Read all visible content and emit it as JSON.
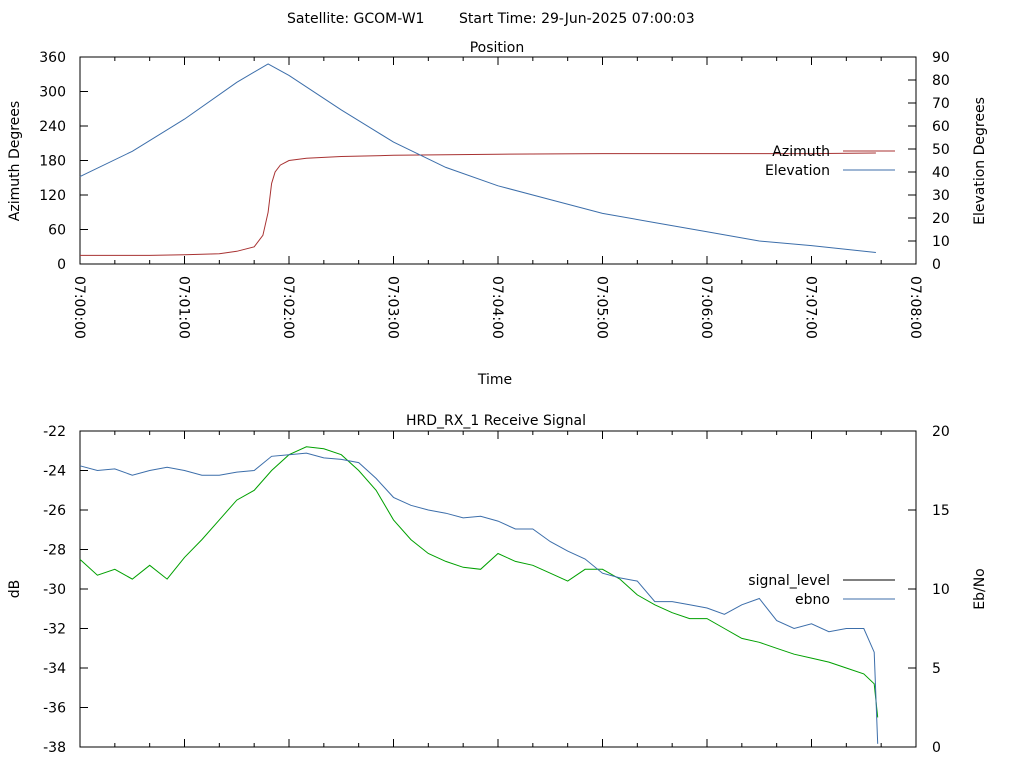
{
  "header": {
    "satellite": "Satellite: GCOM-W1",
    "start_time": "Start Time: 29-Jun-2025 07:00:03"
  },
  "chart_data": [
    {
      "type": "line",
      "title": "Position",
      "xlabel": "Time",
      "ylabel": "Azimuth Degrees",
      "y2label": "Elevation Degrees",
      "x_ticks": [
        "07:00:00",
        "07:01:00",
        "07:02:00",
        "07:03:00",
        "07:04:00",
        "07:05:00",
        "07:06:00",
        "07:07:00",
        "07:08:00"
      ],
      "x_range_seconds": [
        0,
        480
      ],
      "ylim": [
        0,
        360
      ],
      "y_ticks": [
        "0",
        "60",
        "120",
        "180",
        "240",
        "300",
        "360"
      ],
      "y2lim": [
        0,
        90
      ],
      "y2_ticks": [
        "0",
        "10",
        "20",
        "30",
        "40",
        "50",
        "60",
        "70",
        "80",
        "90"
      ],
      "legend_position": "right",
      "series": [
        {
          "name": "Azimuth",
          "axis": "y",
          "color": "#a83232",
          "x": [
            0,
            20,
            40,
            60,
            80,
            90,
            100,
            105,
            108,
            110,
            112,
            115,
            120,
            130,
            150,
            180,
            210,
            240,
            300,
            360,
            420,
            457
          ],
          "y": [
            15,
            15,
            15,
            16,
            18,
            22,
            30,
            50,
            90,
            140,
            160,
            172,
            180,
            184,
            187,
            189,
            190,
            191,
            192,
            192,
            192,
            193
          ]
        },
        {
          "name": "Elevation",
          "axis": "y2",
          "color": "#3c6eaa",
          "x": [
            0,
            30,
            60,
            90,
            108,
            120,
            150,
            180,
            210,
            240,
            270,
            300,
            330,
            360,
            390,
            420,
            457
          ],
          "y": [
            38,
            49,
            63,
            79,
            87,
            82,
            67,
            53,
            42,
            34,
            28,
            22,
            18,
            14,
            10,
            8,
            5
          ]
        }
      ]
    },
    {
      "type": "line",
      "title": "HRD_RX_1 Receive Signal",
      "xlabel": "",
      "ylabel": "dB",
      "y2label": "Eb/No",
      "x_range_seconds": [
        0,
        480
      ],
      "ylim": [
        -38,
        -22
      ],
      "y_ticks": [
        "-22",
        "-24",
        "-26",
        "-28",
        "-30",
        "-32",
        "-34",
        "-36",
        "-38"
      ],
      "y2lim": [
        0,
        20
      ],
      "y2_ticks": [
        "0",
        "5",
        "10",
        "15",
        "20"
      ],
      "legend_position": "right",
      "series": [
        {
          "name": "signal_level",
          "axis": "y",
          "color": "#00a000",
          "x": [
            0,
            10,
            20,
            30,
            40,
            50,
            60,
            70,
            80,
            90,
            100,
            110,
            120,
            130,
            140,
            150,
            160,
            170,
            180,
            190,
            200,
            210,
            220,
            230,
            240,
            250,
            260,
            270,
            280,
            290,
            300,
            310,
            320,
            330,
            340,
            350,
            360,
            370,
            380,
            390,
            400,
            410,
            420,
            430,
            440,
            450,
            456,
            458
          ],
          "y": [
            -28.5,
            -29.3,
            -29.0,
            -29.5,
            -28.8,
            -29.5,
            -28.4,
            -27.5,
            -26.5,
            -25.5,
            -25.0,
            -24.0,
            -23.2,
            -22.8,
            -22.9,
            -23.2,
            -24.0,
            -25.0,
            -26.5,
            -27.5,
            -28.2,
            -28.6,
            -28.9,
            -29.0,
            -28.2,
            -28.6,
            -28.8,
            -29.2,
            -29.6,
            -29.0,
            -29.0,
            -29.5,
            -30.3,
            -30.8,
            -31.2,
            -31.5,
            -31.5,
            -32.0,
            -32.5,
            -32.7,
            -33.0,
            -33.3,
            -33.5,
            -33.7,
            -34.0,
            -34.3,
            -34.8,
            -36.5
          ]
        },
        {
          "name": "ebno",
          "axis": "y2",
          "color": "#3c6eaa",
          "x": [
            0,
            10,
            20,
            30,
            40,
            50,
            60,
            70,
            80,
            90,
            100,
            110,
            120,
            130,
            140,
            150,
            160,
            170,
            180,
            190,
            200,
            210,
            220,
            230,
            240,
            250,
            260,
            270,
            280,
            290,
            300,
            310,
            320,
            330,
            340,
            350,
            360,
            370,
            380,
            390,
            400,
            410,
            420,
            430,
            440,
            450,
            456,
            458
          ],
          "y": [
            17.8,
            17.5,
            17.6,
            17.2,
            17.5,
            17.7,
            17.5,
            17.2,
            17.2,
            17.4,
            17.5,
            18.4,
            18.5,
            18.6,
            18.3,
            18.2,
            18.0,
            17.0,
            15.8,
            15.3,
            15.0,
            14.8,
            14.5,
            14.6,
            14.3,
            13.8,
            13.8,
            13.0,
            12.4,
            11.9,
            11.0,
            10.7,
            10.5,
            9.2,
            9.2,
            9.0,
            8.8,
            8.4,
            9.0,
            9.4,
            8.0,
            7.5,
            7.8,
            7.3,
            7.5,
            7.5,
            6.0,
            0.2
          ]
        }
      ]
    }
  ]
}
